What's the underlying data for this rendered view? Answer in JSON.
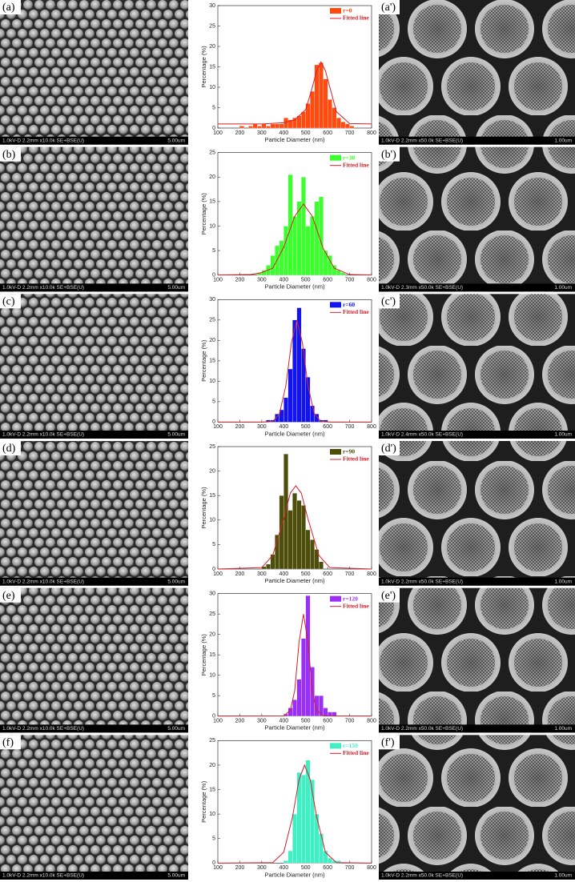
{
  "chart_data": [
    {
      "type": "histogram",
      "name": "r=0",
      "color": "#ff4a10",
      "xlabel": "Particle Diameter (nm)",
      "ylabel": "Percentage (%)",
      "xlim": [
        100,
        800
      ],
      "xticks": [
        100,
        200,
        300,
        400,
        500,
        600,
        700,
        800
      ],
      "ylim": [
        0,
        30
      ],
      "yticks": [
        0,
        5,
        10,
        15,
        20,
        25,
        30
      ],
      "bins": [
        200,
        220,
        240,
        260,
        280,
        300,
        320,
        340,
        360,
        380,
        400,
        420,
        440,
        460,
        480,
        500,
        520,
        540,
        560,
        580,
        600,
        620,
        640,
        660,
        680,
        700,
        720
      ],
      "counts": [
        0.5,
        0,
        0.5,
        1,
        0.5,
        1,
        0.5,
        1,
        1,
        1,
        2.5,
        2,
        2.5,
        3,
        4,
        6,
        9,
        15.5,
        16,
        12,
        7,
        5,
        2.5,
        1.5,
        1,
        0.5
      ],
      "fit": {
        "name": "Fitted line",
        "color": "#d81e2a",
        "x": [
          100,
          200,
          300,
          400,
          450,
          500,
          525,
          550,
          570,
          590,
          615,
          640,
          700,
          800
        ],
        "y": [
          1,
          1,
          1,
          1.3,
          2,
          4.5,
          9,
          14,
          16.2,
          14,
          9,
          4,
          1.1,
          1
        ]
      }
    },
    {
      "type": "histogram",
      "name": "r=30",
      "color": "#3cff2e",
      "xlabel": "Particle Diameter (nm)",
      "ylabel": "Percentage (%)",
      "xlim": [
        100,
        800
      ],
      "xticks": [
        100,
        200,
        300,
        400,
        500,
        600,
        700,
        800
      ],
      "ylim": [
        0,
        25
      ],
      "yticks": [
        0,
        5,
        10,
        15,
        20,
        25
      ],
      "bins": [
        280,
        300,
        320,
        340,
        360,
        380,
        400,
        420,
        440,
        460,
        480,
        500,
        520,
        540,
        560,
        580,
        600,
        620,
        640,
        660,
        680
      ],
      "counts": [
        0.5,
        1,
        2,
        4,
        6,
        7,
        10,
        20.5,
        12,
        15,
        20,
        10,
        12,
        15,
        16,
        5,
        4,
        2,
        1,
        0.5
      ],
      "fit": {
        "name": "Fitted line",
        "color": "#d81e2a",
        "x": [
          100,
          250,
          300,
          350,
          400,
          450,
          490,
          530,
          580,
          630,
          700,
          800
        ],
        "y": [
          0,
          0.1,
          0.5,
          1.4,
          5.7,
          12,
          14.5,
          12,
          5.4,
          1.4,
          0.1,
          0
        ]
      }
    },
    {
      "type": "histogram",
      "name": "r=60",
      "color": "#1414f0",
      "xlabel": "Particle Diameter (nm)",
      "ylabel": "Percentage (%)",
      "xlim": [
        100,
        800
      ],
      "xticks": [
        100,
        200,
        300,
        400,
        500,
        600,
        700,
        800
      ],
      "ylim": [
        0,
        30
      ],
      "yticks": [
        0,
        5,
        10,
        15,
        20,
        25,
        30
      ],
      "bins": [
        320,
        340,
        360,
        380,
        400,
        420,
        440,
        460,
        480,
        500,
        520,
        540,
        560,
        580,
        600
      ],
      "counts": [
        0.5,
        0.5,
        2,
        3,
        6,
        13,
        25,
        28,
        18,
        11,
        4,
        2,
        0.5,
        0.5
      ],
      "fit": {
        "name": "Fitted line",
        "color": "#d81e2a",
        "x": [
          100,
          300,
          350,
          380,
          410,
          435,
          460,
          485,
          510,
          540,
          570,
          620,
          800
        ],
        "y": [
          0,
          0,
          0.2,
          1.9,
          9,
          19.4,
          25,
          19.4,
          9,
          1.9,
          0.2,
          0,
          0
        ]
      }
    },
    {
      "type": "histogram",
      "name": "r=90",
      "color": "#4d4d0c",
      "xlabel": "Particle Diameter (nm)",
      "ylabel": "Percentage (%)",
      "xlim": [
        100,
        800
      ],
      "xticks": [
        100,
        200,
        300,
        400,
        500,
        600,
        700,
        800
      ],
      "ylim": [
        0,
        25
      ],
      "yticks": [
        0,
        5,
        10,
        15,
        20,
        25
      ],
      "bins": [
        300,
        320,
        340,
        360,
        380,
        400,
        420,
        440,
        460,
        480,
        500,
        520,
        540,
        560,
        580
      ],
      "counts": [
        0.5,
        1,
        3,
        7,
        15,
        23.5,
        12,
        15.5,
        14,
        13,
        8,
        6,
        4,
        1.5
      ],
      "fit": {
        "name": "Fitted line",
        "color": "#d81e2a",
        "x": [
          100,
          300,
          350,
          400,
          430,
          455,
          480,
          510,
          560,
          610,
          800
        ],
        "y": [
          0,
          0.3,
          2.8,
          10.3,
          15.5,
          17,
          15.5,
          10.3,
          2.8,
          0.3,
          0
        ]
      }
    },
    {
      "type": "histogram",
      "name": "r=120",
      "color": "#9a30f5",
      "xlabel": "Particle Diameter (nm)",
      "ylabel": "Percentage (%)",
      "xlim": [
        100,
        800
      ],
      "xticks": [
        100,
        200,
        300,
        400,
        500,
        600,
        700,
        800
      ],
      "ylim": [
        0,
        30
      ],
      "yticks": [
        0,
        5,
        10,
        15,
        20,
        25,
        30
      ],
      "bins": [
        400,
        420,
        440,
        460,
        480,
        500,
        520,
        540,
        560,
        580,
        600,
        620,
        640
      ],
      "counts": [
        0.5,
        2,
        4,
        9,
        19,
        29.5,
        12,
        5,
        5,
        2,
        1,
        1
      ],
      "fit": {
        "name": "Fitted line",
        "color": "#d81e2a",
        "x": [
          100,
          400,
          430,
          450,
          470,
          490,
          510,
          530,
          550,
          580,
          800
        ],
        "y": [
          0,
          0.04,
          1.4,
          6.2,
          18.2,
          25,
          18.2,
          6.2,
          1.4,
          0.04,
          0
        ]
      }
    },
    {
      "type": "histogram",
      "name": "r=150",
      "color": "#40f0c4",
      "xlabel": "Particle Diameter (nm)",
      "ylabel": "Percentage (%)",
      "xlim": [
        100,
        800
      ],
      "xticks": [
        100,
        200,
        300,
        400,
        500,
        600,
        700,
        800
      ],
      "ylim": [
        0,
        25
      ],
      "yticks": [
        0,
        5,
        10,
        15,
        20,
        25
      ],
      "bins": [
        400,
        420,
        440,
        460,
        480,
        500,
        520,
        540,
        560,
        580,
        600,
        620,
        640,
        660
      ],
      "counts": [
        0.5,
        2.5,
        10,
        18.5,
        18,
        21,
        17,
        10,
        6,
        2.5,
        1,
        0.5,
        0.5
      ],
      "fit": {
        "name": "Fitted line",
        "color": "#d81e2a",
        "x": [
          100,
          350,
          400,
          440,
          470,
          495,
          520,
          550,
          590,
          640,
          800
        ],
        "y": [
          0,
          0.1,
          2.2,
          9.4,
          17.1,
          20,
          17.1,
          9.4,
          2.2,
          0.1,
          0
        ]
      }
    }
  ],
  "panels": [
    {
      "left_label": "(a)",
      "left_caption": "1.0kV-D 2.2mm x10.0k SE+BSE(U)",
      "left_scale": "5.00um",
      "right_label": "(a')",
      "right_caption": "1.0kV-D 2.2mm x50.0k SE+BSE(U)",
      "right_scale": "1.00um"
    },
    {
      "left_label": "(b)",
      "left_caption": "1.0kV-D 2.2mm x10.0k SE+BSE(U)",
      "left_scale": "5.00um",
      "right_label": "(b')",
      "right_caption": "1.0kV-D 2.3mm x50.0k SE+BSE(U)",
      "right_scale": "1.00um"
    },
    {
      "left_label": "(c)",
      "left_caption": "1.0kV-D 2.2mm x10.0k SE+BSE(U)",
      "left_scale": "5.00um",
      "right_label": "(c')",
      "right_caption": "1.0kV-D 2.4mm x50.0k SE+BSE(U)",
      "right_scale": "1.00um"
    },
    {
      "left_label": "(d)",
      "left_caption": "1.0kV-D 2.2mm x10.0k SE+BSE(U)",
      "left_scale": "5.00um",
      "right_label": "(d')",
      "right_caption": "1.0kV-D 2.2mm x50.0k SE+BSE(U)",
      "right_scale": "1.00um"
    },
    {
      "left_label": "(e)",
      "left_caption": "1.0kV-D 2.2mm x10.0k SE+BSE(U)",
      "left_scale": "5.00um",
      "right_label": "(e')",
      "right_caption": "1.0kV-D 2.2mm x50.0k SE+BSE(U)",
      "right_scale": "1.00um"
    },
    {
      "left_label": "(f)",
      "left_caption": "1.0kV-D 2.2mm x10.0k SE+BSE(U)",
      "left_scale": "5.00um",
      "right_label": "(f')",
      "right_caption": "1.0kV-D 2.2mm x50.0k SE+BSE(U)",
      "right_scale": "1.00um"
    }
  ]
}
